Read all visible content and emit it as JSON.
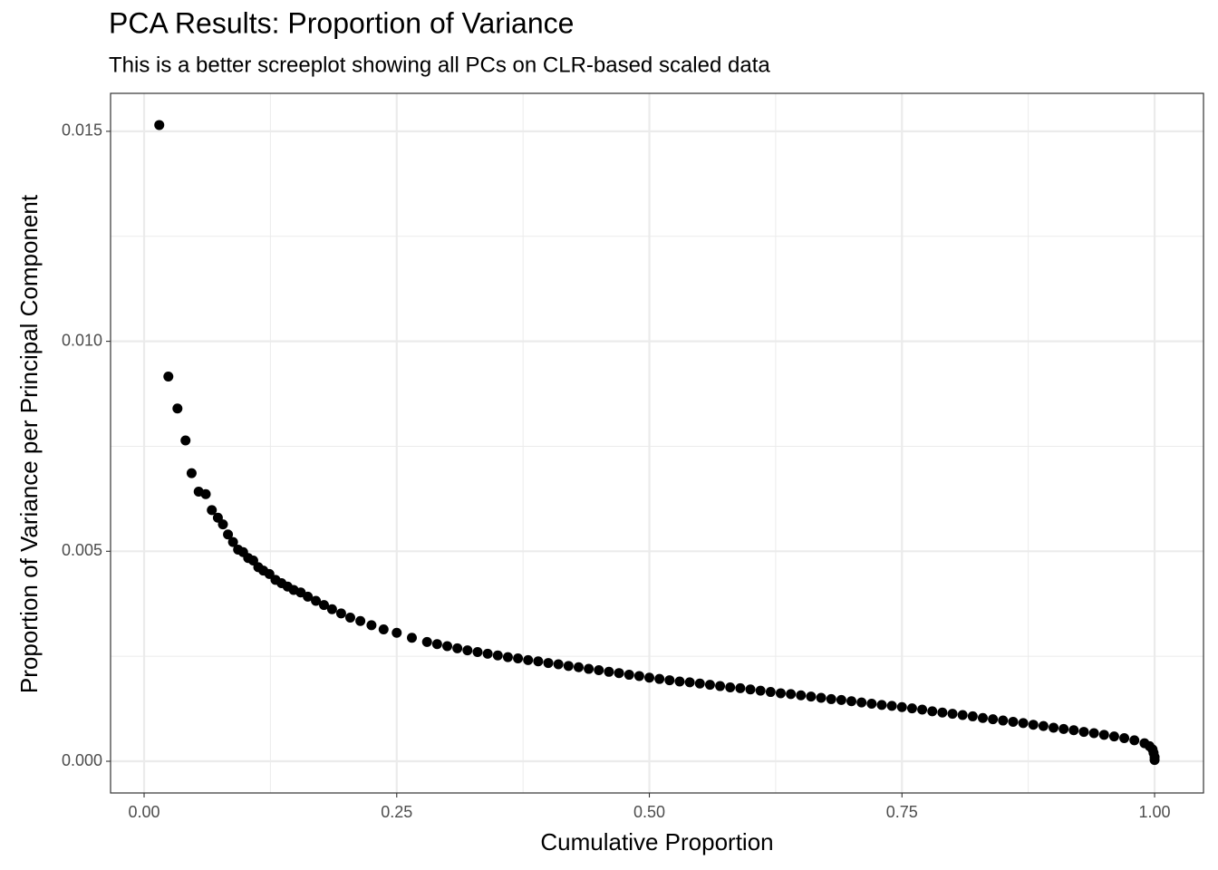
{
  "chart_data": {
    "type": "scatter",
    "title": "PCA Results: Proportion of Variance",
    "subtitle": "This is a better screeplot showing all PCs on CLR-based scaled data",
    "x_label": "Cumulative Proportion",
    "y_label": "Proportion of Variance per Principal Component",
    "color": "#000000",
    "grid": true,
    "xlim": [
      -0.0332,
      1.0484
    ],
    "ylim": [
      -0.000755,
      0.015904
    ],
    "xticks": [
      {
        "value": 0,
        "label": "0.00"
      },
      {
        "value": 0.25,
        "label": "0.25"
      },
      {
        "value": 0.5,
        "label": "0.50"
      },
      {
        "value": 0.75,
        "label": "0.75"
      },
      {
        "value": 1,
        "label": "1.00"
      }
    ],
    "yticks": [
      {
        "value": 0,
        "label": "0.000"
      },
      {
        "value": 0.005,
        "label": "0.005"
      },
      {
        "value": 0.01,
        "label": "0.010"
      },
      {
        "value": 0.015,
        "label": "0.015"
      }
    ],
    "xminor": [
      0.125,
      0.375,
      0.625,
      0.875
    ],
    "yminor": [
      0.0025,
      0.0075,
      0.0125
    ],
    "x": [
      0.015,
      0.024,
      0.033,
      0.041,
      0.047,
      0.054,
      0.061,
      0.067,
      0.073,
      0.078,
      0.083,
      0.088,
      0.093,
      0.098,
      0.103,
      0.108,
      0.113,
      0.118,
      0.124,
      0.13,
      0.136,
      0.142,
      0.148,
      0.155,
      0.162,
      0.17,
      0.178,
      0.186,
      0.195,
      0.204,
      0.214,
      0.225,
      0.237,
      0.25,
      0.265,
      0.28,
      0.29,
      0.3,
      0.31,
      0.32,
      0.33,
      0.34,
      0.35,
      0.36,
      0.37,
      0.38,
      0.39,
      0.4,
      0.41,
      0.42,
      0.43,
      0.44,
      0.45,
      0.46,
      0.47,
      0.48,
      0.49,
      0.5,
      0.51,
      0.52,
      0.53,
      0.54,
      0.55,
      0.56,
      0.57,
      0.58,
      0.59,
      0.6,
      0.61,
      0.62,
      0.63,
      0.64,
      0.65,
      0.66,
      0.67,
      0.68,
      0.69,
      0.7,
      0.71,
      0.72,
      0.73,
      0.74,
      0.75,
      0.76,
      0.77,
      0.78,
      0.79,
      0.8,
      0.81,
      0.82,
      0.83,
      0.84,
      0.85,
      0.86,
      0.87,
      0.88,
      0.89,
      0.9,
      0.91,
      0.92,
      0.93,
      0.94,
      0.95,
      0.96,
      0.97,
      0.98,
      0.99,
      0.995,
      0.998,
      0.999,
      1.0,
      1.0
    ],
    "values": [
      0.01515,
      0.00916,
      0.0084,
      0.00764,
      0.00686,
      0.00642,
      0.00636,
      0.00598,
      0.0058,
      0.00564,
      0.0054,
      0.00522,
      0.00504,
      0.00498,
      0.00484,
      0.00478,
      0.00462,
      0.00454,
      0.00446,
      0.00432,
      0.00424,
      0.00416,
      0.00408,
      0.00402,
      0.00392,
      0.00382,
      0.00372,
      0.00362,
      0.00352,
      0.00342,
      0.00334,
      0.00324,
      0.00314,
      0.00306,
      0.00294,
      0.00284,
      0.00279,
      0.00274,
      0.00269,
      0.00264,
      0.0026,
      0.00256,
      0.00252,
      0.00248,
      0.00245,
      0.00241,
      0.00238,
      0.00234,
      0.00231,
      0.00227,
      0.00224,
      0.0022,
      0.00217,
      0.00213,
      0.0021,
      0.00206,
      0.00203,
      0.00199,
      0.00196,
      0.00193,
      0.0019,
      0.00188,
      0.00185,
      0.00182,
      0.00179,
      0.00176,
      0.00174,
      0.00171,
      0.00168,
      0.00165,
      0.00162,
      0.0016,
      0.00157,
      0.00154,
      0.00151,
      0.00148,
      0.00146,
      0.00143,
      0.0014,
      0.00137,
      0.00134,
      0.00132,
      0.00129,
      0.00126,
      0.00123,
      0.00119,
      0.00116,
      0.00113,
      0.0011,
      0.00107,
      0.00103,
      0.001,
      0.00097,
      0.00094,
      0.00091,
      0.00087,
      0.00084,
      0.0008,
      0.00077,
      0.00074,
      0.0007,
      0.00067,
      0.00063,
      0.00059,
      0.00055,
      0.0005,
      0.00043,
      0.00036,
      0.00028,
      0.0002,
      0.0001,
      3e-05
    ]
  }
}
